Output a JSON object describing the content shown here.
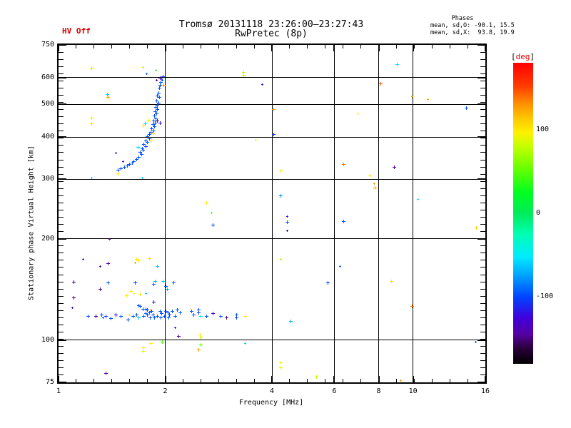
{
  "header": {
    "hv_status": "HV Off",
    "title": "Tromsø 20131118 23:26:00–23:27:43",
    "subtitle": "RwPretec (8p)",
    "phases_title": "Phases",
    "phases_mean_sd_o": "mean, sd,O: -90.1, 15.5",
    "phases_mean_sd_x": "mean, sd,X:  93.8, 19.9"
  },
  "colors": {
    "hv_status": "#dd0000",
    "deg_label": "#ee0000",
    "axis": "#000000",
    "background": "#ffffff"
  },
  "chart_data": {
    "type": "scatter",
    "title": "Tromsø 20131118 23:26:00–23:27:43",
    "subtitle": "RwPretec (8p)",
    "xlabel": "Frequency [MHz]",
    "ylabel": "Stationary phase Virtual Height [km]",
    "x_scale": "log",
    "y_scale": "log",
    "xlim": [
      1,
      16
    ],
    "ylim": [
      75,
      750
    ],
    "x_major_ticks": [
      1,
      2,
      4,
      6,
      8,
      10,
      16
    ],
    "y_major_ticks": [
      750,
      600,
      500,
      400,
      300,
      200,
      100,
      75
    ],
    "x_gridlines": [
      2,
      4,
      6,
      8,
      10
    ],
    "y_gridlines": [
      600,
      500,
      400,
      300,
      200,
      100
    ],
    "grid": true,
    "colorbar": {
      "label_open": "[",
      "label_text": "deg",
      "label_close": "]",
      "min": -180,
      "max": 180,
      "tick_values": [
        100,
        0,
        -100
      ],
      "tick_labels": [
        "100",
        "0",
        "-100"
      ]
    },
    "point_fields": [
      "frequency_MHz",
      "virtual_height_km",
      "phase_deg",
      "marker_size"
    ],
    "points": [
      [
        1.97,
        605,
        -95,
        1
      ],
      [
        1.95,
        600,
        -100,
        1
      ],
      [
        1.96,
        592,
        -95,
        0
      ],
      [
        1.94,
        583,
        -95,
        1
      ],
      [
        1.93,
        570,
        -100,
        1
      ],
      [
        1.92,
        560,
        -95,
        1
      ],
      [
        1.91,
        540,
        -95,
        1
      ],
      [
        1.9,
        530,
        -100,
        1
      ],
      [
        1.92,
        525,
        -95,
        1
      ],
      [
        1.89,
        512,
        -95,
        1
      ],
      [
        1.91,
        505,
        -100,
        1
      ],
      [
        1.9,
        498,
        -95,
        1
      ],
      [
        1.88,
        492,
        -95,
        1
      ],
      [
        1.9,
        485,
        -100,
        1
      ],
      [
        1.87,
        478,
        -95,
        1
      ],
      [
        1.89,
        470,
        -95,
        1
      ],
      [
        1.86,
        463,
        -100,
        1
      ],
      [
        1.88,
        455,
        -95,
        1
      ],
      [
        1.85,
        448,
        -95,
        1
      ],
      [
        1.87,
        442,
        -100,
        1
      ],
      [
        1.84,
        437,
        -95,
        1
      ],
      [
        1.86,
        430,
        -95,
        1
      ],
      [
        1.83,
        425,
        -100,
        1
      ],
      [
        1.85,
        419,
        -95,
        1
      ],
      [
        1.82,
        414,
        -95,
        1
      ],
      [
        1.8,
        408,
        -100,
        1
      ],
      [
        1.78,
        402,
        -95,
        1
      ],
      [
        1.8,
        396,
        -95,
        1
      ],
      [
        1.76,
        391,
        -100,
        1
      ],
      [
        1.78,
        386,
        -95,
        1
      ],
      [
        1.74,
        381,
        -95,
        1
      ],
      [
        1.76,
        376,
        -100,
        1
      ],
      [
        1.72,
        371,
        -95,
        1
      ],
      [
        1.73,
        366,
        -95,
        1
      ],
      [
        1.7,
        361,
        -100,
        1
      ],
      [
        1.71,
        356,
        -95,
        1
      ],
      [
        1.68,
        350,
        -95,
        1
      ],
      [
        1.66,
        345,
        -100,
        1
      ],
      [
        1.63,
        340,
        -95,
        1
      ],
      [
        1.61,
        336,
        -95,
        1
      ],
      [
        1.58,
        332,
        -100,
        1
      ],
      [
        1.56,
        329,
        -95,
        1
      ],
      [
        1.53,
        326,
        -95,
        1
      ],
      [
        1.5,
        323,
        -100,
        1
      ],
      [
        1.47,
        320,
        -95,
        1
      ],
      [
        1.98,
        570,
        126,
        1
      ],
      [
        1.93,
        600,
        -140,
        1
      ],
      [
        1.89,
        592,
        -150,
        0
      ],
      [
        1.9,
        448,
        -140,
        1
      ],
      [
        1.93,
        441,
        -122,
        1
      ],
      [
        1.79,
        450,
        100,
        1
      ],
      [
        1.73,
        432,
        100,
        1
      ],
      [
        1.84,
        411,
        100,
        1
      ],
      [
        1.83,
        392,
        98,
        1
      ],
      [
        1.75,
        438,
        -60,
        1
      ],
      [
        1.67,
        373,
        -58,
        1
      ],
      [
        1.88,
        632,
        35,
        0
      ],
      [
        1.73,
        645,
        75,
        0
      ],
      [
        1.77,
        618,
        -95,
        0
      ],
      [
        1.52,
        340,
        -140,
        0
      ],
      [
        1.45,
        360,
        -120,
        0
      ],
      [
        1.24,
        640,
        80,
        1
      ],
      [
        1.37,
        536,
        -60,
        1
      ],
      [
        1.38,
        525,
        126,
        1
      ],
      [
        1.24,
        456,
        100,
        1
      ],
      [
        1.24,
        438,
        100,
        1
      ],
      [
        1.24,
        304,
        -60,
        0
      ],
      [
        1.47,
        312,
        100,
        1
      ],
      [
        1.72,
        303,
        -55,
        0
      ],
      [
        3.32,
        623,
        75,
        1
      ],
      [
        3.32,
        610,
        75,
        1
      ],
      [
        3.75,
        573,
        -115,
        0
      ],
      [
        2.61,
        256,
        100,
        1
      ],
      [
        2.7,
        239,
        45,
        0
      ],
      [
        2.72,
        220,
        -95,
        1
      ],
      [
        9.0,
        658,
        -55,
        1
      ],
      [
        8.09,
        576,
        145,
        1
      ],
      [
        9.93,
        528,
        126,
        0
      ],
      [
        11.0,
        519,
        126,
        0
      ],
      [
        14.1,
        488,
        -95,
        1
      ],
      [
        4.04,
        484,
        126,
        1
      ],
      [
        6.98,
        470,
        100,
        0
      ],
      [
        4.04,
        408,
        -105,
        1
      ],
      [
        3.6,
        392,
        80,
        0
      ],
      [
        4.23,
        319,
        100,
        1
      ],
      [
        6.36,
        332,
        138,
        1
      ],
      [
        8.83,
        327,
        -138,
        1
      ],
      [
        7.55,
        307,
        100,
        1
      ],
      [
        7.76,
        291,
        126,
        0
      ],
      [
        7.79,
        283,
        126,
        1
      ],
      [
        4.23,
        269,
        -80,
        1
      ],
      [
        10.3,
        262,
        -55,
        0
      ],
      [
        4.41,
        233,
        -120,
        0
      ],
      [
        4.41,
        224,
        -95,
        1
      ],
      [
        4.41,
        212,
        -150,
        0
      ],
      [
        6.36,
        225,
        -95,
        1
      ],
      [
        15.07,
        216,
        108,
        1
      ],
      [
        4.23,
        174,
        70,
        0
      ],
      [
        6.21,
        166,
        -95,
        0
      ],
      [
        5.74,
        148,
        -100,
        1
      ],
      [
        8.67,
        150,
        100,
        1
      ],
      [
        9.93,
        126,
        140,
        1
      ],
      [
        4.51,
        114,
        -70,
        1
      ],
      [
        15.0,
        99,
        -95,
        0
      ],
      [
        4.23,
        86,
        100,
        1
      ],
      [
        4.23,
        83,
        90,
        1
      ],
      [
        5.33,
        78,
        80,
        1
      ],
      [
        9.21,
        76,
        126,
        0
      ],
      [
        1.1,
        149,
        -150,
        1
      ],
      [
        1.1,
        134,
        -150,
        1
      ],
      [
        1.09,
        125,
        -120,
        0
      ],
      [
        1.17,
        174,
        -120,
        0
      ],
      [
        1.38,
        169,
        -140,
        1
      ],
      [
        1.31,
        166,
        -140,
        0
      ],
      [
        1.31,
        142,
        -145,
        1
      ],
      [
        1.39,
        200,
        -140,
        0
      ],
      [
        1.66,
        174,
        100,
        1
      ],
      [
        1.68,
        172,
        100,
        1
      ],
      [
        1.64,
        170,
        126,
        0
      ],
      [
        1.8,
        175,
        100,
        1
      ],
      [
        1.9,
        166,
        -60,
        1
      ],
      [
        1.38,
        148,
        -95,
        1
      ],
      [
        1.64,
        148,
        -100,
        1
      ],
      [
        1.85,
        147,
        -95,
        1
      ],
      [
        1.87,
        150,
        -65,
        1
      ],
      [
        1.97,
        150,
        -60,
        1
      ],
      [
        2.0,
        145,
        -95,
        1
      ],
      [
        2.02,
        142,
        -70,
        1
      ],
      [
        2.11,
        148,
        -95,
        1
      ],
      [
        1.6,
        140,
        100,
        1
      ],
      [
        1.63,
        138,
        95,
        0
      ],
      [
        1.7,
        137,
        100,
        1
      ],
      [
        1.76,
        138,
        -60,
        0
      ],
      [
        1.55,
        136,
        100,
        1
      ],
      [
        1.85,
        130,
        -120,
        1
      ],
      [
        1.68,
        127,
        -95,
        1
      ],
      [
        1.7,
        126,
        -95,
        1
      ],
      [
        1.73,
        124,
        -95,
        1
      ],
      [
        1.82,
        123,
        126,
        0
      ],
      [
        1.76,
        124,
        -95,
        1
      ],
      [
        1.78,
        123,
        -100,
        1
      ],
      [
        1.8,
        121,
        -95,
        1
      ],
      [
        1.83,
        122,
        -100,
        1
      ],
      [
        1.84,
        119,
        -95,
        1
      ],
      [
        1.78,
        119,
        -100,
        1
      ],
      [
        1.76,
        120,
        -90,
        1
      ],
      [
        1.81,
        117,
        -95,
        1
      ],
      [
        1.93,
        122,
        -95,
        1
      ],
      [
        1.95,
        120,
        -100,
        1
      ],
      [
        2.0,
        122,
        -95,
        1
      ],
      [
        2.03,
        121,
        -95,
        1
      ],
      [
        2.05,
        119,
        -100,
        1
      ],
      [
        2.09,
        122,
        -95,
        1
      ],
      [
        1.21,
        118,
        -95,
        1
      ],
      [
        1.27,
        118,
        -150,
        1
      ],
      [
        1.32,
        119,
        -95,
        1
      ],
      [
        1.33,
        117,
        -95,
        0
      ],
      [
        1.36,
        118,
        -100,
        1
      ],
      [
        1.4,
        116,
        -95,
        1
      ],
      [
        1.45,
        119,
        -120,
        1
      ],
      [
        1.5,
        118,
        -95,
        1
      ],
      [
        1.57,
        115,
        -95,
        1
      ],
      [
        1.58,
        119,
        100,
        0
      ],
      [
        1.62,
        118,
        -95,
        1
      ],
      [
        1.66,
        119,
        -95,
        1
      ],
      [
        1.68,
        117,
        -65,
        1
      ],
      [
        1.74,
        118,
        -95,
        1
      ],
      [
        1.86,
        117,
        -95,
        1
      ],
      [
        1.9,
        118,
        -95,
        1
      ],
      [
        1.94,
        117,
        -100,
        1
      ],
      [
        1.99,
        118,
        -95,
        1
      ],
      [
        2.04,
        117,
        -95,
        1
      ],
      [
        2.13,
        118,
        -95,
        1
      ],
      [
        2.2,
        121,
        -95,
        1
      ],
      [
        2.16,
        123,
        -95,
        1
      ],
      [
        2.37,
        122,
        -95,
        1
      ],
      [
        2.4,
        119,
        -95,
        1
      ],
      [
        2.48,
        123,
        -95,
        1
      ],
      [
        2.48,
        121,
        -100,
        1
      ],
      [
        2.52,
        118,
        -55,
        1
      ],
      [
        2.61,
        118,
        -95,
        1
      ],
      [
        2.72,
        120,
        -130,
        1
      ],
      [
        2.86,
        118,
        -95,
        1
      ],
      [
        2.97,
        117,
        -140,
        1
      ],
      [
        3.17,
        119,
        -95,
        1
      ],
      [
        3.17,
        117,
        -100,
        1
      ],
      [
        3.35,
        118,
        100,
        1
      ],
      [
        2.13,
        109,
        -120,
        0
      ],
      [
        2.18,
        103,
        -140,
        1
      ],
      [
        2.5,
        104,
        100,
        1
      ],
      [
        2.52,
        102,
        85,
        1
      ],
      [
        1.82,
        98,
        100,
        1
      ],
      [
        1.96,
        99,
        45,
        1
      ],
      [
        2.52,
        97,
        50,
        1
      ],
      [
        2.48,
        94,
        126,
        1
      ],
      [
        1.73,
        95,
        100,
        1
      ],
      [
        1.73,
        93,
        85,
        1
      ],
      [
        3.35,
        98,
        -60,
        0
      ],
      [
        1.36,
        80,
        -140,
        1
      ]
    ]
  }
}
